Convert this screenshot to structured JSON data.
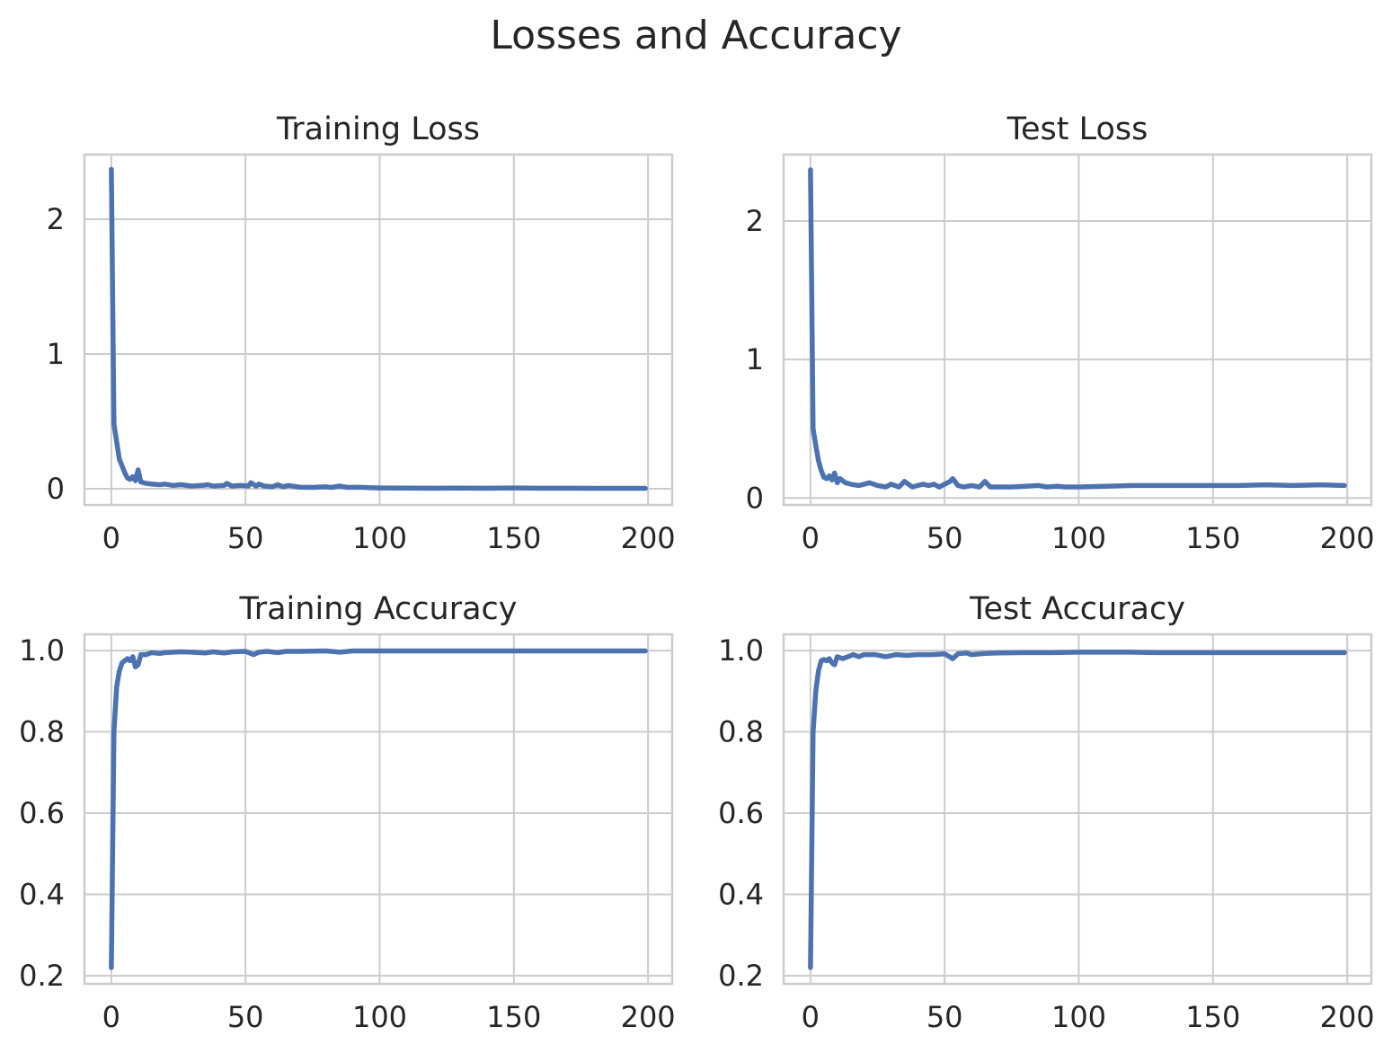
{
  "figure": {
    "title": "Losses and Accuracy"
  },
  "style": {
    "line_color": "#4c72b0",
    "grid_color": "#cccccc",
    "text_color": "#262626",
    "background": "#ffffff"
  },
  "chart_data": [
    {
      "type": "line",
      "title": "Training Loss",
      "xlabel": "",
      "ylabel": "",
      "xlim": [
        -10,
        209
      ],
      "ylim": [
        -0.12,
        2.48
      ],
      "xticks": [
        0,
        50,
        100,
        150,
        200
      ],
      "yticks": [
        0,
        1,
        2
      ],
      "grid": true,
      "series": [
        {
          "points": [
            [
              0,
              2.37
            ],
            [
              1,
              0.48
            ],
            [
              2,
              0.35
            ],
            [
              3,
              0.22
            ],
            [
              4,
              0.17
            ],
            [
              5,
              0.12
            ],
            [
              6,
              0.08
            ],
            [
              7,
              0.07
            ],
            [
              8,
              0.09
            ],
            [
              9,
              0.06
            ],
            [
              10,
              0.14
            ],
            [
              11,
              0.05
            ],
            [
              13,
              0.04
            ],
            [
              15,
              0.035
            ],
            [
              18,
              0.03
            ],
            [
              20,
              0.035
            ],
            [
              23,
              0.025
            ],
            [
              26,
              0.03
            ],
            [
              30,
              0.02
            ],
            [
              34,
              0.025
            ],
            [
              36,
              0.03
            ],
            [
              38,
              0.02
            ],
            [
              42,
              0.025
            ],
            [
              43,
              0.04
            ],
            [
              45,
              0.02
            ],
            [
              48,
              0.025
            ],
            [
              51,
              0.02
            ],
            [
              52,
              0.045
            ],
            [
              54,
              0.02
            ],
            [
              55,
              0.035
            ],
            [
              57,
              0.02
            ],
            [
              60,
              0.015
            ],
            [
              62,
              0.03
            ],
            [
              64,
              0.015
            ],
            [
              66,
              0.025
            ],
            [
              70,
              0.012
            ],
            [
              75,
              0.01
            ],
            [
              80,
              0.015
            ],
            [
              82,
              0.01
            ],
            [
              85,
              0.02
            ],
            [
              88,
              0.01
            ],
            [
              92,
              0.012
            ],
            [
              96,
              0.008
            ],
            [
              100,
              0.006
            ],
            [
              110,
              0.005
            ],
            [
              120,
              0.004
            ],
            [
              130,
              0.005
            ],
            [
              140,
              0.004
            ],
            [
              150,
              0.006
            ],
            [
              160,
              0.004
            ],
            [
              170,
              0.004
            ],
            [
              180,
              0.003
            ],
            [
              190,
              0.003
            ],
            [
              199,
              0.003
            ]
          ]
        }
      ]
    },
    {
      "type": "line",
      "title": "Test Loss",
      "xlabel": "",
      "ylabel": "",
      "xlim": [
        -10,
        209
      ],
      "ylim": [
        -0.05,
        2.48
      ],
      "xticks": [
        0,
        50,
        100,
        150,
        200
      ],
      "yticks": [
        0,
        1,
        2
      ],
      "grid": true,
      "series": [
        {
          "points": [
            [
              0,
              2.37
            ],
            [
              1,
              0.5
            ],
            [
              2,
              0.38
            ],
            [
              3,
              0.27
            ],
            [
              4,
              0.2
            ],
            [
              5,
              0.15
            ],
            [
              6,
              0.14
            ],
            [
              7,
              0.16
            ],
            [
              8,
              0.13
            ],
            [
              9,
              0.18
            ],
            [
              10,
              0.11
            ],
            [
              11,
              0.14
            ],
            [
              13,
              0.11
            ],
            [
              15,
              0.1
            ],
            [
              18,
              0.09
            ],
            [
              20,
              0.1
            ],
            [
              22,
              0.11
            ],
            [
              25,
              0.09
            ],
            [
              28,
              0.08
            ],
            [
              30,
              0.1
            ],
            [
              33,
              0.08
            ],
            [
              35,
              0.12
            ],
            [
              38,
              0.08
            ],
            [
              40,
              0.09
            ],
            [
              42,
              0.1
            ],
            [
              44,
              0.09
            ],
            [
              46,
              0.1
            ],
            [
              48,
              0.08
            ],
            [
              50,
              0.1
            ],
            [
              52,
              0.12
            ],
            [
              53,
              0.14
            ],
            [
              55,
              0.09
            ],
            [
              57,
              0.08
            ],
            [
              60,
              0.09
            ],
            [
              63,
              0.08
            ],
            [
              65,
              0.12
            ],
            [
              67,
              0.08
            ],
            [
              70,
              0.08
            ],
            [
              75,
              0.08
            ],
            [
              80,
              0.085
            ],
            [
              85,
              0.09
            ],
            [
              88,
              0.08
            ],
            [
              92,
              0.085
            ],
            [
              95,
              0.08
            ],
            [
              100,
              0.08
            ],
            [
              110,
              0.085
            ],
            [
              120,
              0.09
            ],
            [
              130,
              0.09
            ],
            [
              140,
              0.09
            ],
            [
              150,
              0.09
            ],
            [
              160,
              0.09
            ],
            [
              170,
              0.095
            ],
            [
              180,
              0.09
            ],
            [
              190,
              0.095
            ],
            [
              199,
              0.09
            ]
          ]
        }
      ]
    },
    {
      "type": "line",
      "title": "Training Accuracy",
      "xlabel": "",
      "ylabel": "",
      "xlim": [
        -10,
        209
      ],
      "ylim": [
        0.18,
        1.04
      ],
      "xticks": [
        0,
        50,
        100,
        150,
        200
      ],
      "yticks": [
        0.2,
        0.4,
        0.6,
        0.8,
        1.0
      ],
      "grid": true,
      "series": [
        {
          "points": [
            [
              0,
              0.22
            ],
            [
              1,
              0.8
            ],
            [
              2,
              0.91
            ],
            [
              3,
              0.95
            ],
            [
              4,
              0.97
            ],
            [
              5,
              0.975
            ],
            [
              6,
              0.98
            ],
            [
              7,
              0.975
            ],
            [
              8,
              0.985
            ],
            [
              9,
              0.96
            ],
            [
              10,
              0.965
            ],
            [
              11,
              0.99
            ],
            [
              13,
              0.99
            ],
            [
              15,
              0.995
            ],
            [
              18,
              0.993
            ],
            [
              20,
              0.995
            ],
            [
              23,
              0.996
            ],
            [
              26,
              0.997
            ],
            [
              30,
              0.996
            ],
            [
              35,
              0.994
            ],
            [
              38,
              0.997
            ],
            [
              42,
              0.994
            ],
            [
              45,
              0.997
            ],
            [
              50,
              0.998
            ],
            [
              53,
              0.99
            ],
            [
              55,
              0.996
            ],
            [
              58,
              0.998
            ],
            [
              62,
              0.995
            ],
            [
              65,
              0.998
            ],
            [
              70,
              0.998
            ],
            [
              80,
              0.999
            ],
            [
              85,
              0.996
            ],
            [
              90,
              0.999
            ],
            [
              100,
              0.999
            ],
            [
              110,
              0.999
            ],
            [
              120,
              0.999
            ],
            [
              130,
              0.999
            ],
            [
              140,
              0.999
            ],
            [
              150,
              0.999
            ],
            [
              160,
              0.999
            ],
            [
              170,
              0.999
            ],
            [
              180,
              0.999
            ],
            [
              190,
              0.999
            ],
            [
              199,
              0.999
            ]
          ]
        }
      ]
    },
    {
      "type": "line",
      "title": "Test Accuracy",
      "xlabel": "",
      "ylabel": "",
      "xlim": [
        -10,
        209
      ],
      "ylim": [
        0.18,
        1.04
      ],
      "xticks": [
        0,
        50,
        100,
        150,
        200
      ],
      "yticks": [
        0.2,
        0.4,
        0.6,
        0.8,
        1.0
      ],
      "grid": true,
      "series": [
        {
          "points": [
            [
              0,
              0.22
            ],
            [
              1,
              0.8
            ],
            [
              2,
              0.9
            ],
            [
              3,
              0.95
            ],
            [
              4,
              0.975
            ],
            [
              5,
              0.978
            ],
            [
              6,
              0.975
            ],
            [
              7,
              0.98
            ],
            [
              8,
              0.97
            ],
            [
              9,
              0.965
            ],
            [
              10,
              0.985
            ],
            [
              12,
              0.98
            ],
            [
              14,
              0.985
            ],
            [
              16,
              0.99
            ],
            [
              18,
              0.985
            ],
            [
              20,
              0.99
            ],
            [
              24,
              0.99
            ],
            [
              28,
              0.985
            ],
            [
              32,
              0.99
            ],
            [
              36,
              0.988
            ],
            [
              40,
              0.99
            ],
            [
              45,
              0.99
            ],
            [
              50,
              0.992
            ],
            [
              53,
              0.98
            ],
            [
              55,
              0.992
            ],
            [
              58,
              0.994
            ],
            [
              60,
              0.99
            ],
            [
              65,
              0.993
            ],
            [
              70,
              0.994
            ],
            [
              80,
              0.995
            ],
            [
              90,
              0.995
            ],
            [
              100,
              0.996
            ],
            [
              110,
              0.996
            ],
            [
              120,
              0.996
            ],
            [
              130,
              0.995
            ],
            [
              140,
              0.995
            ],
            [
              150,
              0.995
            ],
            [
              160,
              0.995
            ],
            [
              170,
              0.995
            ],
            [
              180,
              0.995
            ],
            [
              190,
              0.995
            ],
            [
              199,
              0.995
            ]
          ]
        }
      ]
    }
  ]
}
